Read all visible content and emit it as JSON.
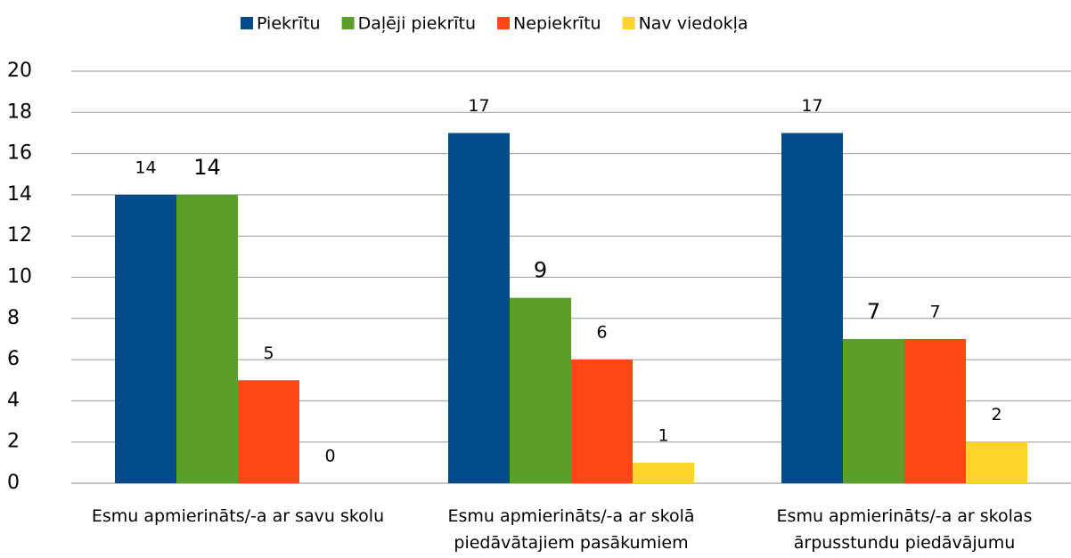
{
  "chart_data": {
    "type": "bar",
    "categories": [
      "Esmu apmierināts/-a ar savu skolu",
      "Esmu apmierināts/-a ar skolā piedāvātajiem pasākumiem",
      "Esmu apmierināts/-a ar skolas ārpusstundu piedāvājumu"
    ],
    "series": [
      {
        "name": "Piekrītu",
        "color": "#044b8b",
        "values": [
          14,
          17,
          17
        ]
      },
      {
        "name": "Daļēji piekrītu",
        "color": "#5c9e2a",
        "values": [
          14,
          9,
          7
        ]
      },
      {
        "name": "Nepiekrītu",
        "color": "#fe4714",
        "values": [
          5,
          6,
          7
        ]
      },
      {
        "name": "Nav viedokļa",
        "color": "#fdd42b",
        "values": [
          0,
          1,
          2
        ]
      }
    ],
    "ylim": [
      0,
      20
    ],
    "yticks": [
      0,
      2,
      4,
      6,
      8,
      10,
      12,
      14,
      16,
      18,
      20
    ],
    "grid": true,
    "legend": "top"
  }
}
